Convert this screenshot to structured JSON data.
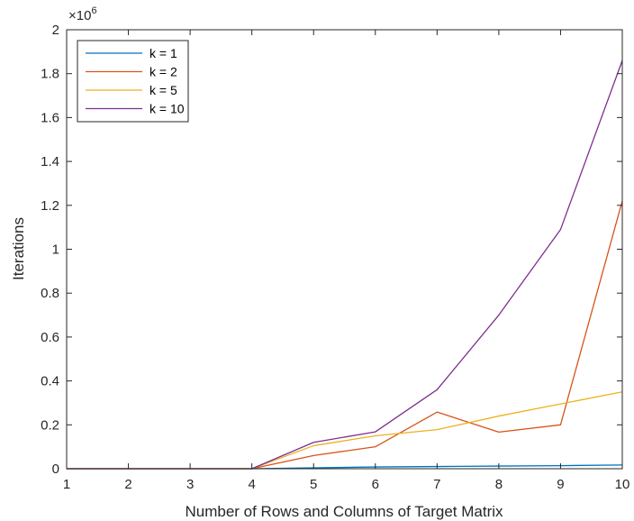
{
  "chart_data": {
    "type": "line",
    "xlabel": "Number of Rows and Columns of Target Matrix",
    "ylabel": "Iterations",
    "xlim": [
      1,
      10
    ],
    "ylim": [
      0,
      2000000
    ],
    "x_ticks": [
      "1",
      "2",
      "3",
      "4",
      "5",
      "6",
      "7",
      "8",
      "9",
      "10"
    ],
    "y_ticks": [
      "0",
      "0.2",
      "0.4",
      "0.6",
      "0.8",
      "1",
      "1.2",
      "1.4",
      "1.6",
      "1.8",
      "2"
    ],
    "y_exponent": {
      "base": "×10",
      "power": "6"
    },
    "grid": false,
    "legend_position": "top-left",
    "x": [
      1,
      2,
      3,
      4,
      5,
      6,
      7,
      8,
      9,
      10
    ],
    "series": [
      {
        "name": "k = 1",
        "color": "#0072bd",
        "values": [
          0,
          0,
          0,
          0,
          4000,
          8000,
          10000,
          12000,
          14000,
          17000
        ]
      },
      {
        "name": "k = 2",
        "color": "#d95319",
        "values": [
          0,
          0,
          0,
          0,
          60000,
          100000,
          258000,
          167000,
          200000,
          1220000
        ]
      },
      {
        "name": "k = 5",
        "color": "#edb120",
        "values": [
          0,
          0,
          0,
          0,
          105000,
          150000,
          178000,
          240000,
          295000,
          350000
        ]
      },
      {
        "name": "k = 10",
        "color": "#7e2f8e",
        "values": [
          0,
          0,
          0,
          0,
          120000,
          168000,
          360000,
          700000,
          1090000,
          1860000
        ]
      }
    ]
  }
}
